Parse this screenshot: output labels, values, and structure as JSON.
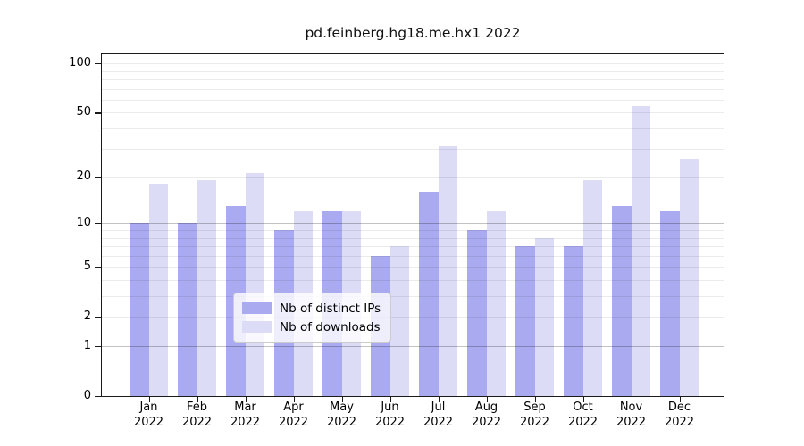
{
  "title": "pd.feinberg.hg18.me.hx1 2022",
  "colors": {
    "distinct_ips_bar": "#aaaaf0",
    "downloads_bar": "#dcdcf7",
    "grid_major": "rgba(0,0,0,0.24)",
    "grid_minor": "rgba(0,0,0,0.08)",
    "frame": "#1a1a1a"
  },
  "legend": {
    "items": [
      {
        "label": "Nb of distinct IPs",
        "color": "#aaaaf0"
      },
      {
        "label": "Nb of downloads",
        "color": "#dcdcf7"
      }
    ]
  },
  "chart_data": {
    "type": "bar",
    "title": "pd.feinberg.hg18.me.hx1 2022",
    "categories": [
      "Jan",
      "Feb",
      "Mar",
      "Apr",
      "May",
      "Jun",
      "Jul",
      "Aug",
      "Sep",
      "Oct",
      "Nov",
      "Dec"
    ],
    "year": "2022",
    "series": [
      {
        "name": "Nb of distinct IPs",
        "color": "#aaaaf0",
        "values": [
          10,
          10,
          13,
          9,
          12,
          6,
          16,
          9,
          7,
          7,
          13,
          12
        ]
      },
      {
        "name": "Nb of downloads",
        "color": "#dcdcf7",
        "values": [
          18,
          19,
          21,
          12,
          12,
          7,
          31,
          12,
          8,
          19,
          55,
          26
        ]
      }
    ],
    "xlabel": "",
    "ylabel": "",
    "yscale": "log10(1+x)",
    "ylim": [
      0,
      119
    ],
    "yticks": [
      0,
      1,
      2,
      5,
      10,
      20,
      50,
      100
    ],
    "grid": {
      "major": [
        1,
        10
      ],
      "minor": [
        2,
        3,
        4,
        5,
        6,
        7,
        8,
        9,
        20,
        30,
        40,
        50,
        60,
        70,
        80,
        90,
        100
      ]
    },
    "legend_position": "bottom-center",
    "legend_entries": [
      "Nb of distinct IPs",
      "Nb of downloads"
    ]
  }
}
